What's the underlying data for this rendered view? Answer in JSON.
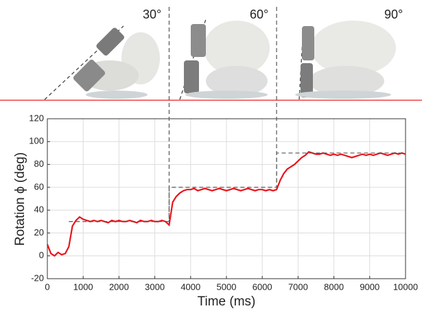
{
  "chart_data": {
    "type": "line",
    "annotations": [
      "30°",
      "60°",
      "90°"
    ],
    "xlabel": "Time (ms)",
    "ylabel": "Rotation ϕ (deg)",
    "xlim": [
      0,
      10000
    ],
    "xticks": [
      0,
      1000,
      2000,
      3000,
      4000,
      5000,
      6000,
      7000,
      8000,
      9000,
      10000
    ],
    "ylim": [
      -20,
      120
    ],
    "yticks": [
      -20,
      0,
      20,
      40,
      60,
      80,
      100,
      120
    ],
    "grid": true,
    "series": [
      {
        "color": "#e8141b",
        "style": "solid",
        "x": [
          0,
          100,
          200,
          300,
          400,
          500,
          600,
          700,
          800,
          900,
          1000,
          1100,
          1200,
          1300,
          1400,
          1500,
          1600,
          1700,
          1800,
          1900,
          2000,
          2100,
          2200,
          2300,
          2400,
          2500,
          2600,
          2700,
          2800,
          2900,
          3000,
          3100,
          3200,
          3300,
          3400,
          3500,
          3600,
          3700,
          3800,
          3900,
          4000,
          4100,
          4200,
          4300,
          4400,
          4500,
          4600,
          4700,
          4800,
          4900,
          5000,
          5100,
          5200,
          5300,
          5400,
          5500,
          5600,
          5700,
          5800,
          5900,
          6000,
          6100,
          6200,
          6300,
          6400,
          6500,
          6600,
          6700,
          6800,
          6900,
          7000,
          7100,
          7200,
          7300,
          7400,
          7500,
          7600,
          7700,
          7800,
          7900,
          8000,
          8100,
          8200,
          8300,
          8400,
          8500,
          8600,
          8700,
          8800,
          8900,
          9000,
          9100,
          9200,
          9300,
          9400,
          9500,
          9600,
          9700,
          9800,
          9900,
          10000
        ],
        "values": [
          10,
          2,
          0,
          3,
          1,
          2,
          8,
          26,
          31,
          34,
          32,
          31,
          30,
          31,
          30,
          31,
          30,
          29,
          31,
          30,
          31,
          30,
          30,
          31,
          30,
          29,
          31,
          30,
          30,
          31,
          30,
          30,
          31,
          30,
          27,
          47,
          52,
          55,
          57,
          58,
          58,
          59,
          57,
          58,
          59,
          58,
          57,
          58,
          59,
          58,
          57,
          58,
          59,
          58,
          57,
          58,
          59,
          58,
          57,
          58,
          58,
          57,
          58,
          57,
          58,
          66,
          72,
          76,
          78,
          80,
          83,
          86,
          88,
          91,
          90,
          89,
          89,
          90,
          89,
          88,
          89,
          88,
          89,
          88,
          87,
          86,
          87,
          88,
          89,
          88,
          89,
          88,
          89,
          90,
          89,
          88,
          89,
          90,
          89,
          90,
          89
        ]
      },
      {
        "color": "#555555",
        "style": "dashed",
        "x": [
          600,
          3400,
          3400,
          6400,
          6400,
          10000
        ],
        "values": [
          30,
          30,
          60,
          60,
          90,
          90
        ]
      }
    ]
  }
}
